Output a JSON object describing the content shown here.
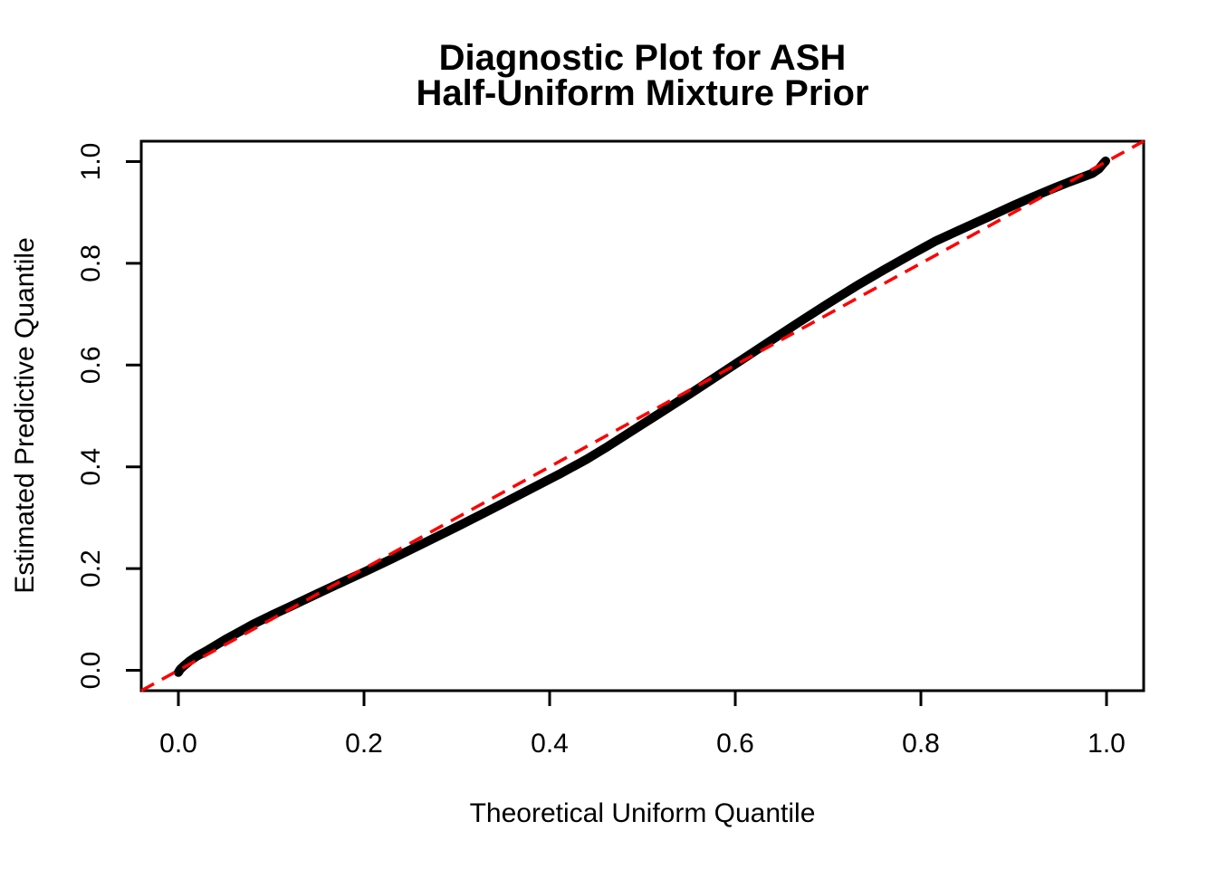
{
  "figure": {
    "background": "#FFFFFF",
    "foreground": "#000000"
  },
  "chart_data": {
    "type": "line",
    "title_line1": "Diagnostic Plot for ASH",
    "title_line2": "Half-Uniform Mixture Prior",
    "xlabel": "Theoretical Uniform Quantile",
    "ylabel": "Estimated Predictive Quantile",
    "xlim": [
      -0.04,
      1.04
    ],
    "ylim": [
      -0.04,
      1.04
    ],
    "grid": false,
    "legend": null,
    "x_ticks": [
      0.0,
      0.2,
      0.4,
      0.6,
      0.8,
      1.0
    ],
    "x_tick_labels": [
      "0.0",
      "0.2",
      "0.4",
      "0.6",
      "0.8",
      "1.0"
    ],
    "y_ticks": [
      0.0,
      0.2,
      0.4,
      0.6,
      0.8,
      1.0
    ],
    "y_tick_labels": [
      "0.0",
      "0.2",
      "0.4",
      "0.6",
      "0.8",
      "1.0"
    ],
    "series": [
      {
        "name": "estimated-predictive-quantile-curve",
        "color": "#000000",
        "style": "solid",
        "stroke_width": 10,
        "points": [
          [
            0.0,
            -0.004
          ],
          [
            0.002,
            0.002
          ],
          [
            0.006,
            0.009
          ],
          [
            0.012,
            0.018
          ],
          [
            0.02,
            0.028
          ],
          [
            0.03,
            0.038
          ],
          [
            0.05,
            0.06
          ],
          [
            0.08,
            0.09
          ],
          [
            0.1,
            0.108
          ],
          [
            0.12,
            0.125
          ],
          [
            0.15,
            0.151
          ],
          [
            0.17,
            0.168
          ],
          [
            0.2,
            0.193
          ],
          [
            0.23,
            0.219
          ],
          [
            0.26,
            0.246
          ],
          [
            0.3,
            0.282
          ],
          [
            0.34,
            0.319
          ],
          [
            0.38,
            0.357
          ],
          [
            0.41,
            0.385
          ],
          [
            0.44,
            0.415
          ],
          [
            0.46,
            0.437
          ],
          [
            0.49,
            0.472
          ],
          [
            0.52,
            0.507
          ],
          [
            0.55,
            0.542
          ],
          [
            0.58,
            0.578
          ],
          [
            0.61,
            0.614
          ],
          [
            0.64,
            0.65
          ],
          [
            0.67,
            0.686
          ],
          [
            0.7,
            0.721
          ],
          [
            0.73,
            0.755
          ],
          [
            0.76,
            0.787
          ],
          [
            0.79,
            0.818
          ],
          [
            0.815,
            0.843
          ],
          [
            0.84,
            0.864
          ],
          [
            0.87,
            0.889
          ],
          [
            0.9,
            0.914
          ],
          [
            0.92,
            0.93
          ],
          [
            0.945,
            0.949
          ],
          [
            0.96,
            0.96
          ],
          [
            0.975,
            0.97
          ],
          [
            0.985,
            0.977
          ],
          [
            0.992,
            0.986
          ],
          [
            0.996,
            0.995
          ],
          [
            0.999,
            1.001
          ]
        ]
      },
      {
        "name": "reference-diagonal",
        "color": "#FF0000",
        "style": "dashed",
        "stroke_width": 3.5,
        "points": [
          [
            -0.04,
            -0.04
          ],
          [
            1.04,
            1.04
          ]
        ]
      }
    ]
  }
}
